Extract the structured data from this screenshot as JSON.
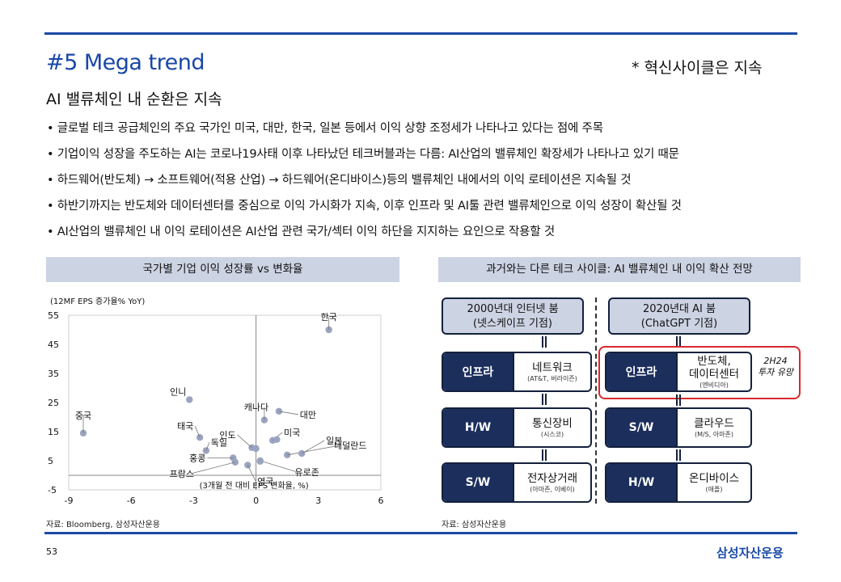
{
  "header": {
    "title": "#5 Mega trend",
    "tagline": "* 혁신사이클은 지속",
    "subtitle": "AI 밸류체인 내 순환은 지속"
  },
  "bullets": [
    "• 글로벌 테크 공급체인의 주요 국가인 미국, 대만, 한국, 일본 등에서 이익 상향 조정세가 나타나고 있다는 점에 주목",
    "• 기업이익 성장을 주도하는 AI는 코로나19사태 이후 나타났던 테크버블과는 다름: AI산업의 밸류체인 확장세가 나타나고 있기 때문",
    "• 하드웨어(반도체) → 소프트웨어(적용 산업) → 하드웨어(온디바이스)등의 밸류체인 내에서의 이익 로테이션은 지속될 것",
    "• 하반기까지는 반도체와 데이터센터를 중심으로 이익 가시화가 지속, 이후 인프라 및 AI툴 관련 밸류체인으로 이익 성장이 확산될 것",
    "• AI산업의 밸류체인 내 이익 로테이션은 AI산업 관련 국가/섹터 이익 하단을 지지하는 요인으로 작용할 것"
  ],
  "left_panel": {
    "heading": "국가별 기업 이익 성장률 vs 변화율",
    "source": "자료: Bloomberg, 삼성자산운용"
  },
  "chart_data": {
    "type": "scatter",
    "ylabel": "(12MF EPS 증가율% YoY)",
    "xlabel": "(3개월 전 대비 EPS 변화율, %)",
    "xlim": [
      -9,
      6
    ],
    "ylim": [
      -5,
      55
    ],
    "xticks": [
      "-9",
      "-6",
      "-3",
      "0",
      "3",
      "6"
    ],
    "yticks": [
      "55",
      "45",
      "35",
      "25",
      "15",
      "5",
      "-5"
    ],
    "grid": false,
    "points": [
      {
        "label": "한국",
        "x": 3.5,
        "y": 50
      },
      {
        "label": "인니",
        "x": -3.2,
        "y": 26
      },
      {
        "label": "캐나다",
        "x": 0.4,
        "y": 19
      },
      {
        "label": "대만",
        "x": 1.1,
        "y": 22
      },
      {
        "label": "중국",
        "x": -8.3,
        "y": 14.5
      },
      {
        "label": "태국",
        "x": -2.7,
        "y": 13
      },
      {
        "label": "인도",
        "x": -0.2,
        "y": 9.5
      },
      {
        "label": "독일",
        "x": -2.4,
        "y": 8.5
      },
      {
        "label": "미국",
        "x": 0.8,
        "y": 12
      },
      {
        "label": "네덜란드",
        "x": 1.5,
        "y": 7
      },
      {
        "label": "일본",
        "x": 2.2,
        "y": 7.5
      },
      {
        "label": "홍콩",
        "x": -1.1,
        "y": 6
      },
      {
        "label": "유로존",
        "x": 0.2,
        "y": 5
      },
      {
        "label": "프랑스",
        "x": -1.0,
        "y": 4.5
      },
      {
        "label": "영국",
        "x": -0.4,
        "y": 3.5
      }
    ],
    "extra_points": [
      {
        "x": 0.0,
        "y": 9.2
      },
      {
        "x": 1.0,
        "y": 12.3
      },
      {
        "x": 0.2,
        "y": 4.8
      }
    ]
  },
  "right_panel": {
    "heading": "과거와는 다른 테크 사이클: AI 밸류체인 내 이익 확산 전망",
    "source": "자료: 삼성자산운용",
    "left_column": {
      "era": [
        "2000년대 인터넷 붐",
        "(넷스케이프 기점)"
      ],
      "stages": [
        {
          "label": "인프라",
          "main": "네트워크",
          "sub": "(AT&T, 버라이즌)"
        },
        {
          "label": "H/W",
          "main": "통신장비",
          "sub": "(시스코)"
        },
        {
          "label": "S/W",
          "main": "전자상거래",
          "sub": "(아마존, 이베이)"
        }
      ]
    },
    "right_column": {
      "era": [
        "2020년대 AI 붐",
        "(ChatGPT 기점)"
      ],
      "stages": [
        {
          "label": "인프라",
          "main": "반도체,",
          "main2": "데이터센터",
          "sub": "(엔비디아)"
        },
        {
          "label": "S/W",
          "main": "클라우드",
          "sub": "(M/S, 아마존)"
        },
        {
          "label": "H/W",
          "main": "온디바이스",
          "sub": "(애플)"
        }
      ],
      "note": [
        "2H24",
        "투자 유망"
      ]
    }
  },
  "footer": {
    "page": "53",
    "logo": "삼성자산운용"
  },
  "colors": {
    "accent": "#1a4aa6",
    "panel_header": "#ccd3e3",
    "label_fill": "#1b2e5c",
    "highlight": "#d9282f",
    "point": "#9aa4c0"
  }
}
